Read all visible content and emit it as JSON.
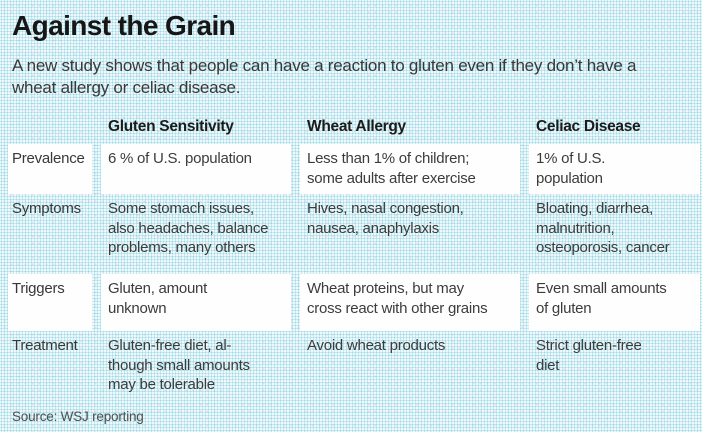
{
  "page": {
    "title": "Against the Grain",
    "subtitle": "A new study shows that people can have a reaction to gluten even if they don’t have a wheat allergy or celiac disease.",
    "source": "Source: WSJ reporting"
  },
  "colors": {
    "halftone_dot_cyan": "#7accde",
    "halftone_dot_pink": "#eea8bc",
    "band_background": "#fefefe",
    "title_text": "#161616",
    "body_text": "#3c3c3c",
    "source_text": "#4e4e4e"
  },
  "display": {
    "columns": [
      "Gluten Sensitivity",
      "Wheat Allergy",
      "Celiac Disease"
    ],
    "rows": [
      {
        "label": "Prevalence",
        "cells": [
          "6 % of U.S. population",
          "Less than 1% of children;\nsome adults after exercise",
          "1% of U.S.\npopulation"
        ]
      },
      {
        "label": "Symptoms",
        "cells": [
          "Some stomach issues,\nalso headaches, balance\nproblems, many others",
          "Hives, nasal congestion,\nnausea, anaphylaxis",
          "Bloating, diarrhea,\nmalnutrition,\nosteoporosis, cancer"
        ]
      },
      {
        "label": "Triggers",
        "cells": [
          "Gluten, amount\nunknown",
          "Wheat proteins, but may\ncross react with other grains",
          "Even small amounts\nof gluten"
        ]
      },
      {
        "label": "Treatment",
        "cells": [
          "Gluten-free diet, al-\nthough small amounts\nmay be tolerable",
          "Avoid wheat products",
          "Strict gluten-free\ndiet"
        ]
      }
    ]
  },
  "chart_data": {
    "type": "table",
    "title": "Against the Grain",
    "subtitle": "A new study shows that people can have a reaction to gluten even if they don’t have a wheat allergy or celiac disease.",
    "columns": [
      "",
      "Gluten Sensitivity",
      "Wheat Allergy",
      "Celiac Disease"
    ],
    "rows": [
      [
        "Prevalence",
        "6 % of U.S. population",
        "Less than 1% of children; some adults after exercise",
        "1% of U.S. population"
      ],
      [
        "Symptoms",
        "Some stomach issues, also headaches, balance problems, many others",
        "Hives, nasal congestion, nausea, anaphylaxis",
        "Bloating, diarrhea, malnutrition, osteoporosis, cancer"
      ],
      [
        "Triggers",
        "Gluten, amount unknown",
        "Wheat proteins, but may cross react with other grains",
        "Even small amounts of gluten"
      ],
      [
        "Treatment",
        "Gluten-free diet, although small amounts may be tolerable",
        "Avoid wheat products",
        "Strict gluten-free diet"
      ]
    ],
    "source": "Source: WSJ reporting",
    "layout": "row labels in first column; alternating rows highlighted with white bands over light-blue halftone background"
  }
}
